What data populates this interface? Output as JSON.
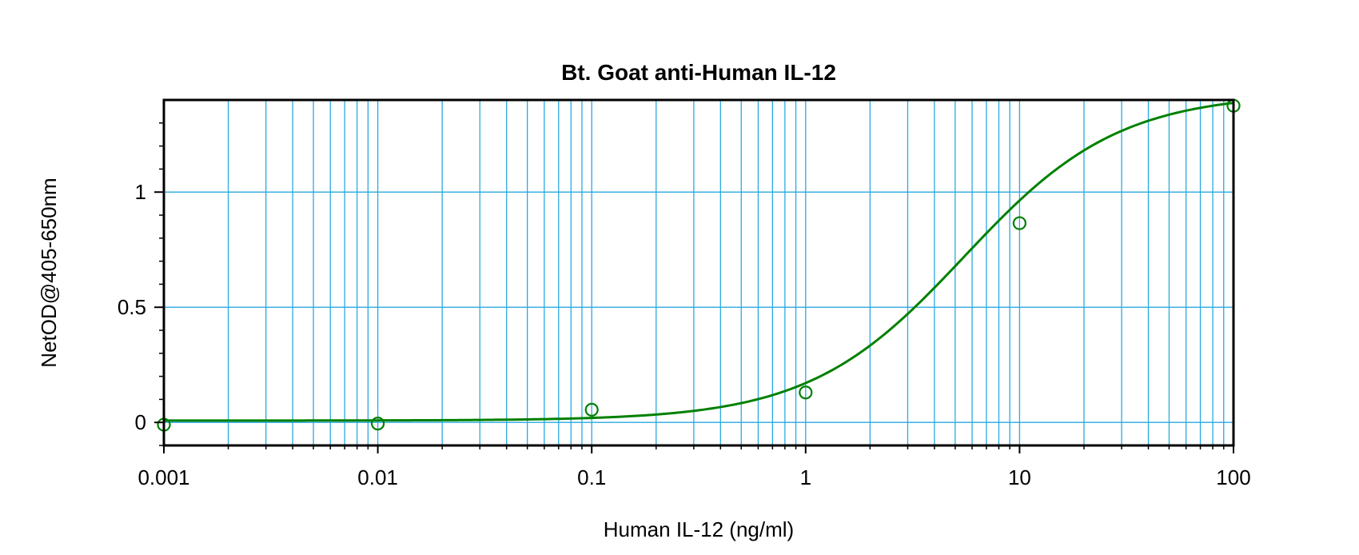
{
  "chart_data": {
    "type": "line",
    "title": "Bt. Goat anti-Human IL-12",
    "xlabel": "Human IL-12 (ng/ml)",
    "ylabel": "NetOD@405-650nm",
    "xscale": "log",
    "xlim": [
      0.001,
      100
    ],
    "ylim": [
      -0.1,
      1.4
    ],
    "x_ticks": [
      0.001,
      0.01,
      0.1,
      1,
      10,
      100
    ],
    "x_tick_labels": [
      "0.001",
      "0.01",
      "0.1",
      "1",
      "10",
      "100"
    ],
    "y_ticks": [
      0,
      0.5,
      1
    ],
    "y_tick_labels": [
      "0",
      "0.5",
      "1"
    ],
    "grid": true,
    "colors": {
      "series": "#008000",
      "grid": "#29aae1",
      "axes": "#000000"
    },
    "series": [
      {
        "x": [
          0.001,
          0.01,
          0.1,
          1,
          10,
          100
        ],
        "y": [
          -0.01,
          -0.005,
          0.055,
          0.13,
          0.865,
          1.375
        ]
      }
    ],
    "fit": {
      "model": "4PL",
      "bottom": 0.008,
      "top": 1.43,
      "ec50": 5.5,
      "hill": 1.2
    }
  }
}
